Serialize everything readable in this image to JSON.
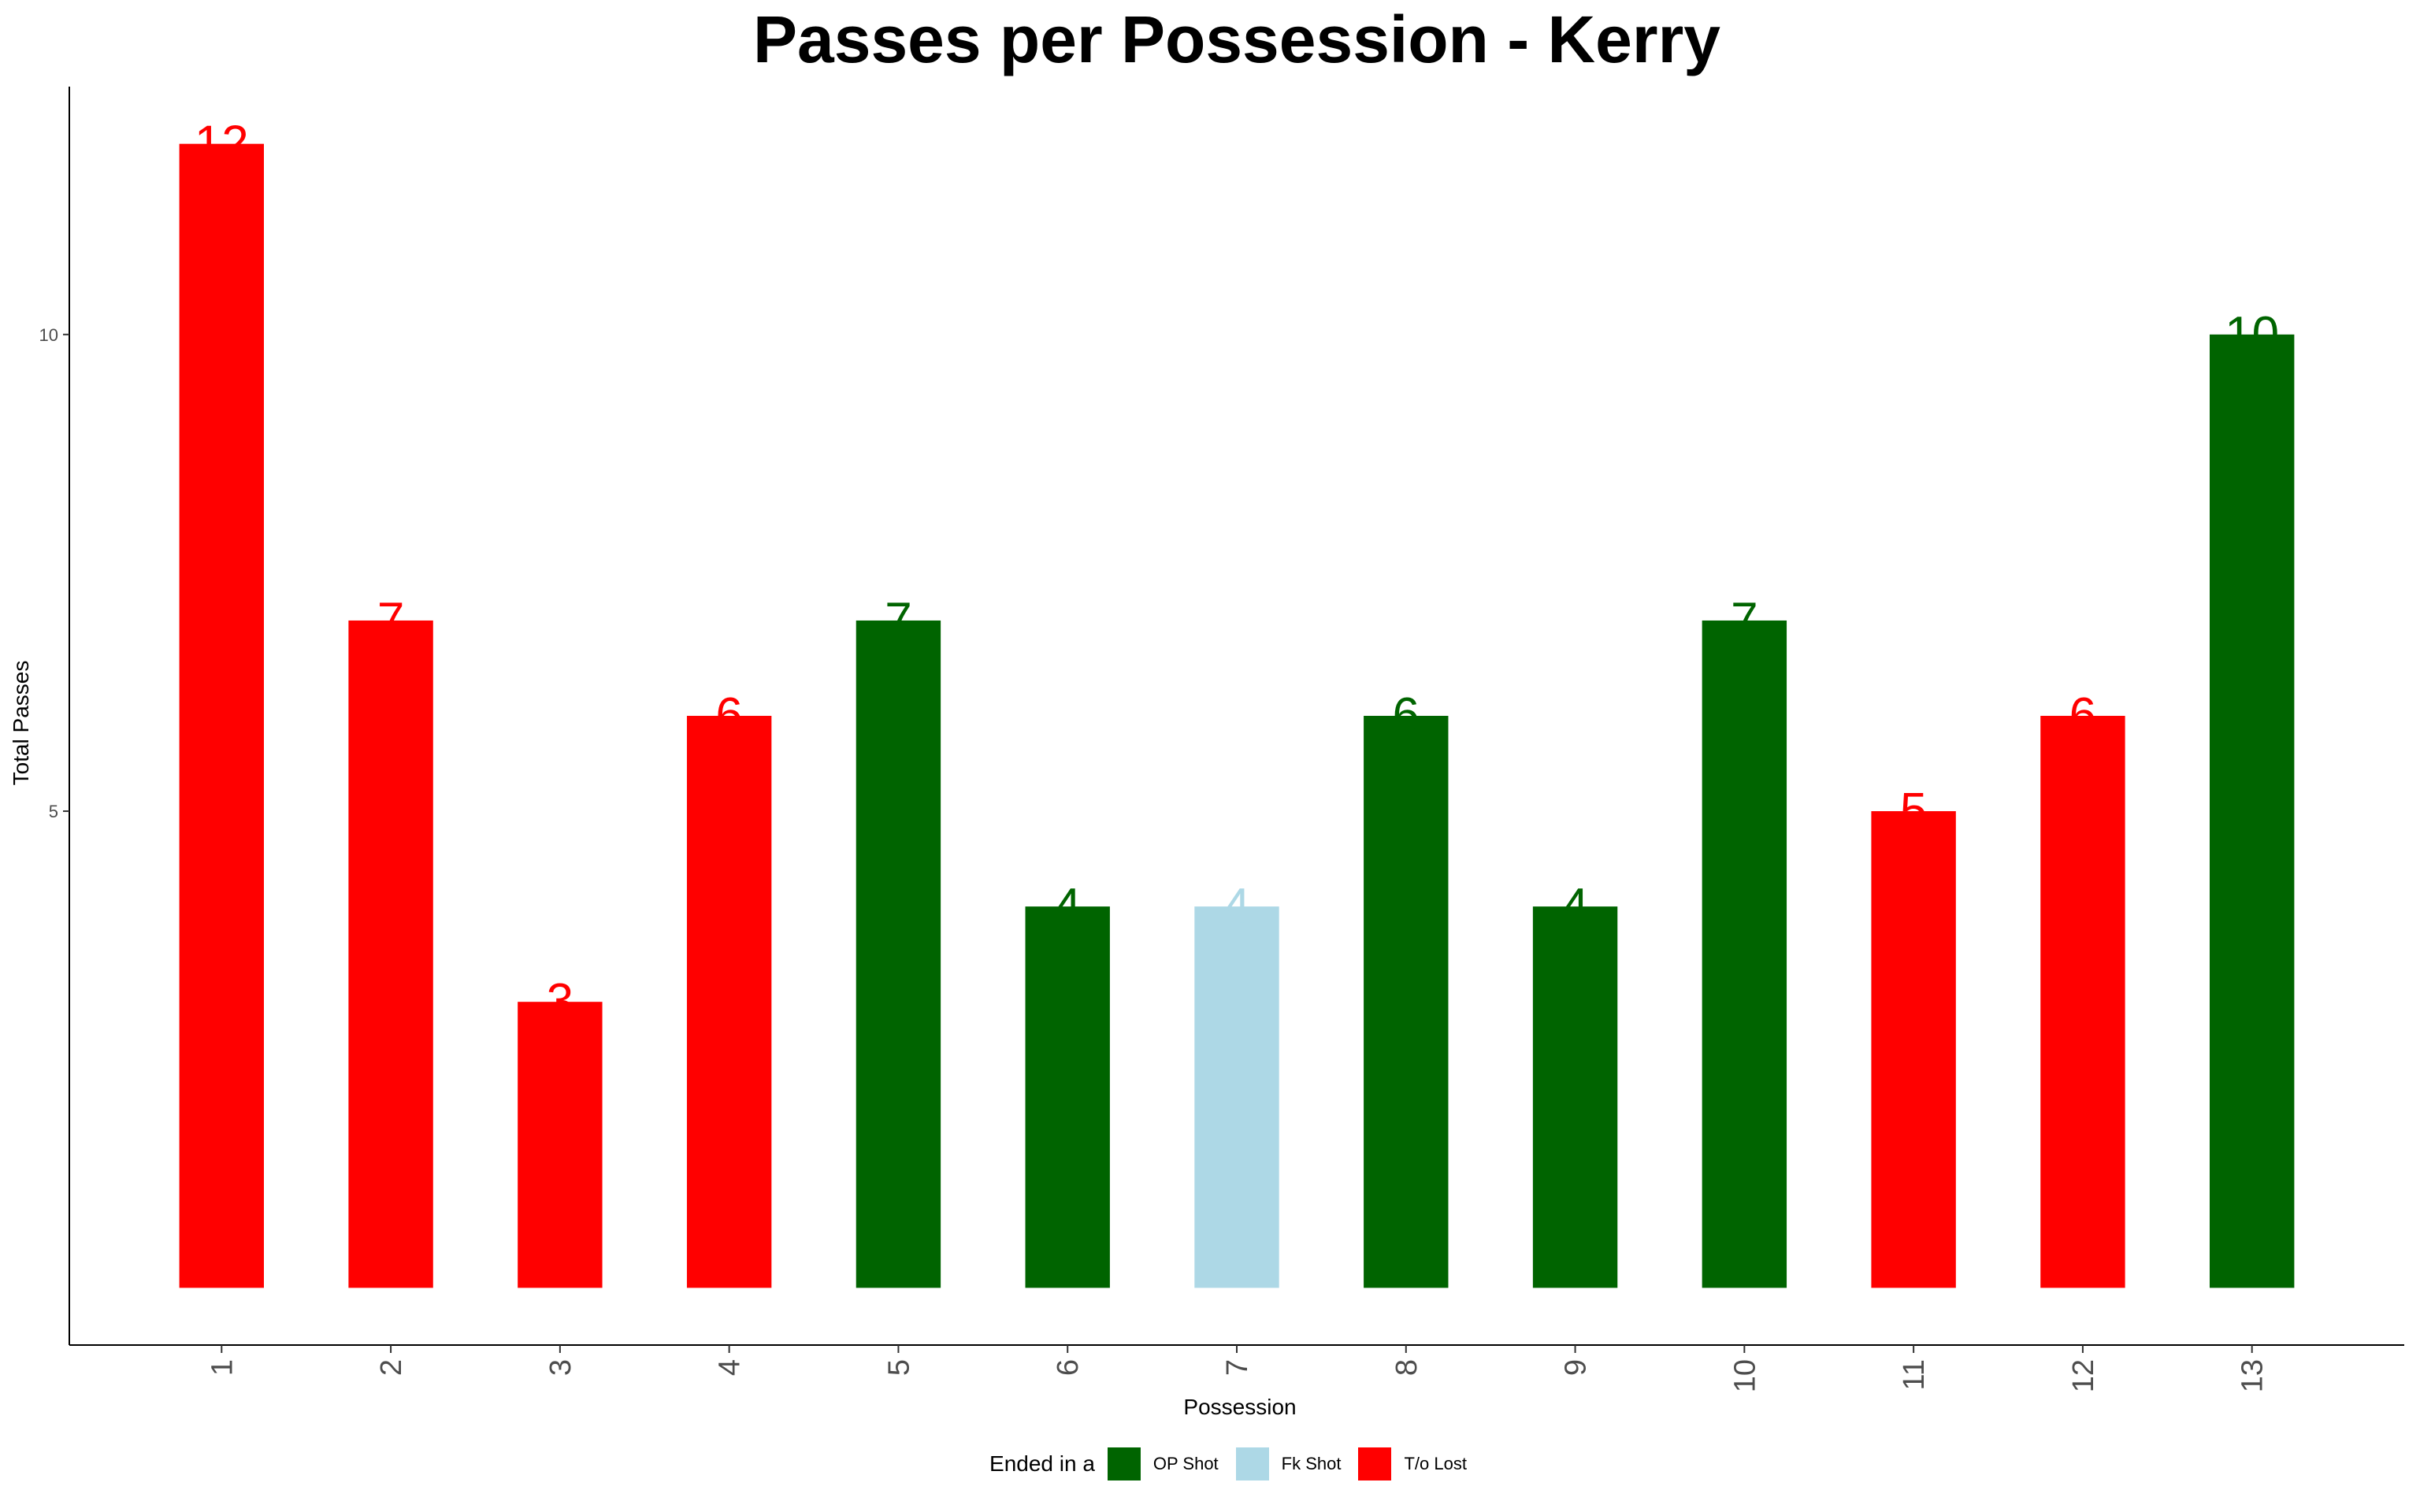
{
  "chart_data": {
    "type": "bar",
    "title": "Passes per Possession - Kerry",
    "xlabel": "Possession",
    "ylabel": "Total Passes",
    "categories": [
      "1",
      "2",
      "3",
      "4",
      "5",
      "6",
      "7",
      "8",
      "9",
      "10",
      "11",
      "12",
      "13"
    ],
    "values": [
      12,
      7,
      3,
      6,
      7,
      4,
      4,
      6,
      4,
      7,
      5,
      6,
      10
    ],
    "outcome": [
      "T/o Lost",
      "T/o Lost",
      "T/o Lost",
      "T/o Lost",
      "OP Shot",
      "OP Shot",
      "Fk Shot",
      "OP Shot",
      "OP Shot",
      "OP Shot",
      "T/o Lost",
      "T/o Lost",
      "OP Shot"
    ],
    "y_ticks": [
      "5",
      "10"
    ],
    "ylim": [
      -0.6,
      12.6
    ],
    "grid": false,
    "legend": {
      "title": "Ended in a",
      "position": "bottom",
      "entries": [
        {
          "label": "OP Shot",
          "color": "#006400"
        },
        {
          "label": "Fk Shot",
          "color": "#ADD8E6"
        },
        {
          "label": "T/o Lost",
          "color": "#FF0000"
        }
      ]
    }
  }
}
